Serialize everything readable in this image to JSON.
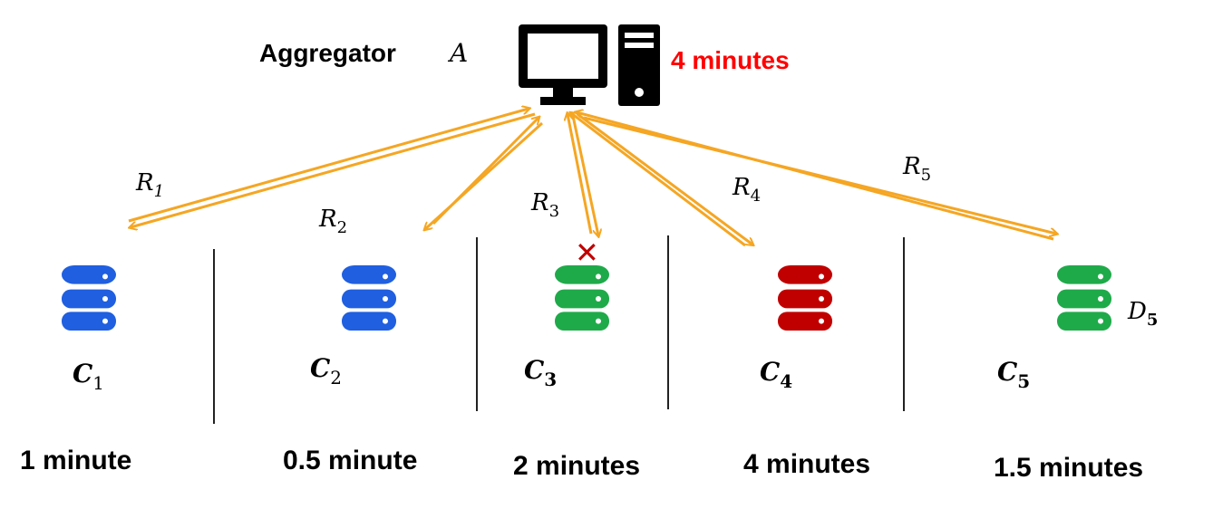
{
  "aggregator": {
    "label": "Aggregator",
    "symbol": "A",
    "time": "4 minutes",
    "time_color": "#ff0000"
  },
  "links": [
    {
      "base": "R",
      "sub": "1"
    },
    {
      "base": "R",
      "sub": "2"
    },
    {
      "base": "R",
      "sub": "3"
    },
    {
      "base": "R",
      "sub": "4"
    },
    {
      "base": "R",
      "sub": "5"
    }
  ],
  "clients": [
    {
      "base": "C",
      "sub": "1",
      "time": "1 minute",
      "db_color": "#1f5fe0",
      "dataset": ""
    },
    {
      "base": "C",
      "sub": "2",
      "time": "0.5 minute",
      "db_color": "#1f5fe0",
      "dataset": ""
    },
    {
      "base": "C",
      "sub": "3",
      "time": "2 minutes",
      "db_color": "#1faa4a",
      "dataset": "",
      "failed": true
    },
    {
      "base": "C",
      "sub": "4",
      "time": "4 minutes",
      "db_color": "#c00000",
      "dataset": ""
    },
    {
      "base": "C",
      "sub": "5",
      "time": "1.5 minutes",
      "db_color": "#1faa4a",
      "dataset": "D5"
    }
  ],
  "dataset_label": {
    "base": "D",
    "sub": "5"
  },
  "failure_mark": "✕",
  "colors": {
    "arrow": "#f5a623",
    "failure": "#c00000",
    "divider": "#222222",
    "icon": "#000000"
  },
  "icons": {
    "aggregator": "desktop-computer-icon",
    "client": "database-icon"
  }
}
